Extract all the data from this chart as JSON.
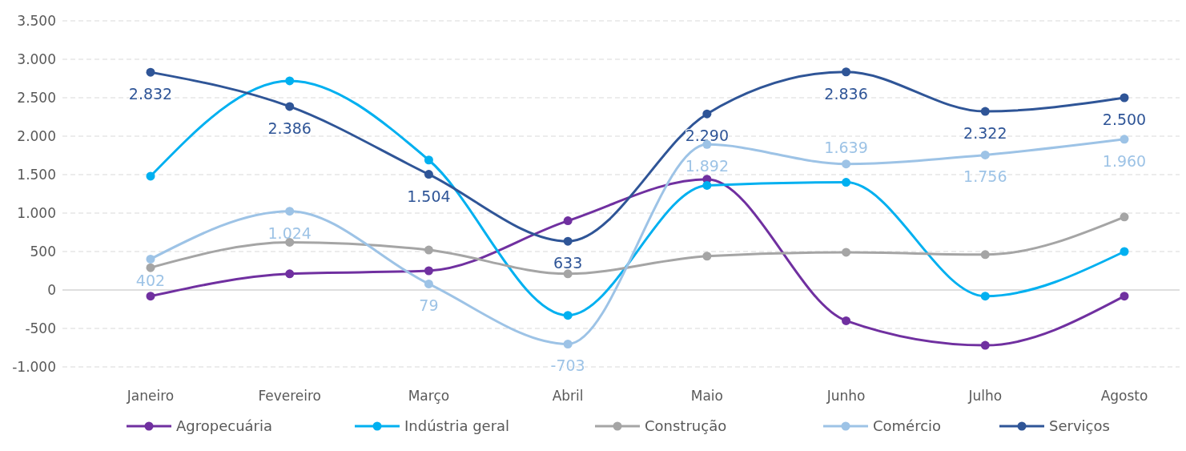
{
  "chart_data": {
    "type": "line",
    "categories": [
      "Janeiro",
      "Fevereiro",
      "Março",
      "Abril",
      "Maio",
      "Junho",
      "Julho",
      "Agosto"
    ],
    "ylim": [
      -1000,
      3500
    ],
    "yticks": [
      {
        "value": -1000,
        "label": "-1.000"
      },
      {
        "value": -500,
        "label": "-500"
      },
      {
        "value": 0,
        "label": "0"
      },
      {
        "value": 500,
        "label": "500"
      },
      {
        "value": 1000,
        "label": "1.000"
      },
      {
        "value": 1500,
        "label": "1.500"
      },
      {
        "value": 2000,
        "label": "2.000"
      },
      {
        "value": 2500,
        "label": "2.500"
      },
      {
        "value": 3000,
        "label": "3.000"
      },
      {
        "value": 3500,
        "label": "3.500"
      }
    ],
    "grid": "y",
    "legend": "bottom",
    "marker": "circle",
    "line_style": "solid",
    "series": [
      {
        "name": "Agropecuária",
        "color": "#7030a0",
        "values": [
          -80,
          210,
          250,
          900,
          1440,
          -400,
          -720,
          -80
        ]
      },
      {
        "name": "Indústria geral",
        "color": "#00b0f0",
        "values": [
          1480,
          2720,
          1690,
          -330,
          1360,
          1400,
          -80,
          500
        ]
      },
      {
        "name": "Construção",
        "color": "#a5a5a5",
        "values": [
          290,
          620,
          520,
          210,
          440,
          490,
          460,
          950
        ]
      },
      {
        "name": "Comércio",
        "color": "#9dc3e6",
        "values": [
          402,
          1024,
          79,
          -703,
          1892,
          1639,
          1756,
          1960
        ],
        "value_labels": [
          "402",
          "1.024",
          "79",
          "-703",
          "1.892",
          "1.639",
          "1.756",
          "1.960"
        ]
      },
      {
        "name": "Serviços",
        "color": "#2f5597",
        "values": [
          2832,
          2386,
          1504,
          633,
          2290,
          2836,
          2322,
          2500
        ],
        "value_labels": [
          "2.832",
          "2.386",
          "1.504",
          "633",
          "2.290",
          "2.836",
          "2.322",
          "2.500"
        ]
      }
    ]
  }
}
